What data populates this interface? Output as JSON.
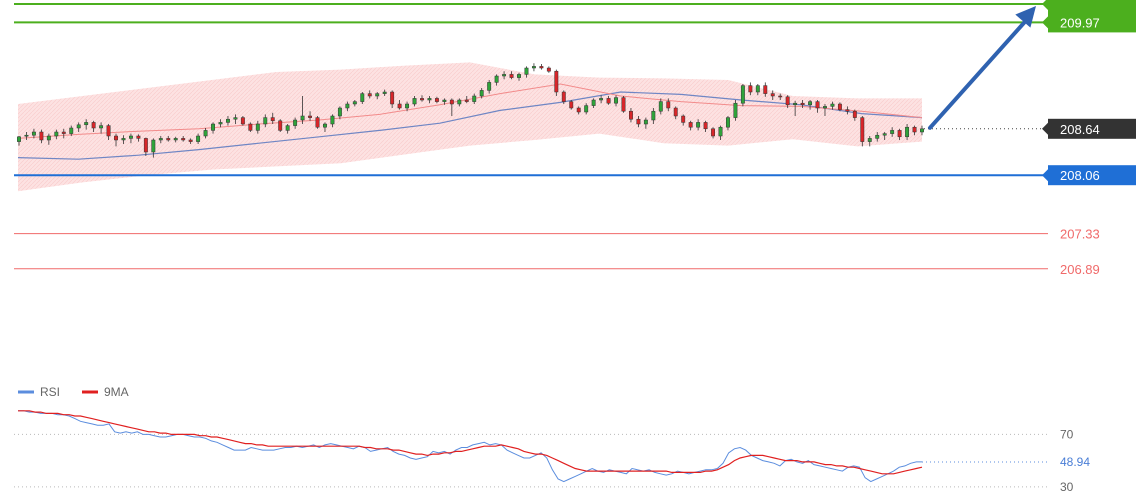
{
  "chart_data": {
    "type": "candlestick",
    "price_axis": {
      "min": 206.6,
      "max": 210.25
    },
    "levels": [
      {
        "id": "resistance-1",
        "value": 210.2,
        "label": "",
        "color": "#4caf1e",
        "style": "solid",
        "badge": true
      },
      {
        "id": "resistance-2",
        "value": 209.97,
        "label": "209.97",
        "color": "#4caf1e",
        "style": "solid",
        "badge": true
      },
      {
        "id": "last-price",
        "value": 208.64,
        "label": "208.64",
        "color": "#333333",
        "style": "dotted",
        "badge": true
      },
      {
        "id": "support-1",
        "value": 208.06,
        "label": "208.06",
        "color": "#1f6fd6",
        "style": "solid",
        "badge": true
      },
      {
        "id": "support-2",
        "value": 207.33,
        "label": "207.33",
        "color": "#f06a6a",
        "style": "solid",
        "badge": false
      },
      {
        "id": "support-3",
        "value": 206.89,
        "label": "206.89",
        "color": "#f06a6a",
        "style": "solid",
        "badge": false
      }
    ],
    "arrow": {
      "from_value": 208.64,
      "to_value": 210.25,
      "color": "#2f62b0"
    },
    "candles": [
      [
        208.48,
        208.55,
        208.43,
        208.54
      ],
      [
        208.55,
        208.6,
        208.5,
        208.56
      ],
      [
        208.56,
        208.64,
        208.52,
        208.6
      ],
      [
        208.6,
        208.63,
        208.46,
        208.5
      ],
      [
        208.5,
        208.58,
        208.44,
        208.55
      ],
      [
        208.55,
        208.63,
        208.51,
        208.6
      ],
      [
        208.6,
        208.64,
        208.52,
        208.58
      ],
      [
        208.58,
        208.68,
        208.55,
        208.65
      ],
      [
        208.65,
        208.72,
        208.6,
        208.69
      ],
      [
        208.69,
        208.76,
        208.63,
        208.72
      ],
      [
        208.72,
        208.74,
        208.6,
        208.65
      ],
      [
        208.65,
        208.72,
        208.58,
        208.68
      ],
      [
        208.68,
        208.7,
        208.5,
        208.55
      ],
      [
        208.55,
        208.58,
        208.42,
        208.5
      ],
      [
        208.5,
        208.56,
        208.45,
        208.52
      ],
      [
        208.52,
        208.58,
        208.46,
        208.55
      ],
      [
        208.55,
        208.57,
        208.48,
        208.52
      ],
      [
        208.52,
        208.53,
        208.3,
        208.35
      ],
      [
        208.35,
        208.52,
        208.28,
        208.5
      ],
      [
        208.5,
        208.55,
        208.46,
        208.52
      ],
      [
        208.52,
        208.55,
        208.48,
        208.5
      ],
      [
        208.5,
        208.54,
        208.47,
        208.52
      ],
      [
        208.52,
        208.55,
        208.48,
        208.5
      ],
      [
        208.5,
        208.52,
        208.45,
        208.48
      ],
      [
        208.48,
        208.58,
        208.45,
        208.55
      ],
      [
        208.55,
        208.65,
        208.52,
        208.62
      ],
      [
        208.62,
        208.72,
        208.58,
        208.7
      ],
      [
        208.7,
        208.76,
        208.66,
        208.72
      ],
      [
        208.72,
        208.8,
        208.68,
        208.76
      ],
      [
        208.76,
        208.82,
        208.7,
        208.78
      ],
      [
        208.78,
        208.8,
        208.68,
        208.7
      ],
      [
        208.7,
        208.72,
        208.6,
        208.62
      ],
      [
        208.62,
        208.74,
        208.58,
        208.7
      ],
      [
        208.7,
        208.82,
        208.66,
        208.78
      ],
      [
        208.78,
        208.84,
        208.7,
        208.74
      ],
      [
        208.74,
        208.76,
        208.6,
        208.62
      ],
      [
        208.62,
        208.7,
        208.58,
        208.68
      ],
      [
        208.68,
        208.78,
        208.64,
        208.75
      ],
      [
        208.75,
        209.05,
        208.7,
        208.8
      ],
      [
        208.8,
        208.86,
        208.74,
        208.78
      ],
      [
        208.78,
        208.8,
        208.64,
        208.66
      ],
      [
        208.66,
        208.72,
        208.6,
        208.7
      ],
      [
        208.7,
        208.82,
        208.66,
        208.8
      ],
      [
        208.8,
        208.92,
        208.76,
        208.9
      ],
      [
        208.9,
        208.98,
        208.86,
        208.95
      ],
      [
        208.95,
        209.0,
        208.92,
        208.98
      ],
      [
        208.98,
        209.1,
        208.95,
        209.08
      ],
      [
        209.08,
        209.12,
        209.02,
        209.05
      ],
      [
        209.05,
        209.1,
        209.01,
        209.08
      ],
      [
        209.08,
        209.13,
        209.05,
        209.1
      ],
      [
        209.1,
        209.12,
        208.9,
        208.95
      ],
      [
        208.95,
        209.0,
        208.88,
        208.9
      ],
      [
        208.9,
        208.98,
        208.86,
        208.95
      ],
      [
        208.95,
        209.05,
        208.92,
        209.02
      ],
      [
        209.02,
        209.06,
        208.98,
        209.0
      ],
      [
        209.0,
        209.05,
        208.96,
        209.02
      ],
      [
        209.02,
        209.04,
        208.96,
        208.98
      ],
      [
        208.98,
        209.02,
        208.94,
        209.0
      ],
      [
        209.0,
        209.02,
        208.8,
        208.95
      ],
      [
        208.95,
        209.02,
        208.92,
        209.0
      ],
      [
        209.0,
        209.05,
        208.96,
        208.98
      ],
      [
        208.98,
        209.08,
        208.95,
        209.05
      ],
      [
        209.05,
        209.15,
        209.02,
        209.12
      ],
      [
        209.12,
        209.25,
        209.08,
        209.22
      ],
      [
        209.22,
        209.32,
        209.18,
        209.3
      ],
      [
        209.3,
        209.36,
        209.26,
        209.32
      ],
      [
        209.32,
        209.36,
        209.26,
        209.28
      ],
      [
        209.28,
        209.34,
        209.24,
        209.32
      ],
      [
        209.32,
        209.42,
        209.28,
        209.4
      ],
      [
        209.4,
        209.46,
        209.36,
        209.42
      ],
      [
        209.42,
        209.45,
        209.38,
        209.4
      ],
      [
        209.4,
        209.42,
        209.34,
        209.36
      ],
      [
        209.36,
        209.38,
        209.05,
        209.1
      ],
      [
        209.1,
        209.12,
        208.95,
        208.98
      ],
      [
        208.98,
        209.0,
        208.88,
        208.9
      ],
      [
        208.9,
        208.92,
        208.82,
        208.85
      ],
      [
        208.85,
        208.96,
        208.82,
        208.93
      ],
      [
        208.93,
        209.02,
        208.9,
        209.0
      ],
      [
        209.0,
        209.06,
        208.96,
        209.02
      ],
      [
        209.02,
        209.05,
        208.94,
        208.96
      ],
      [
        208.96,
        209.06,
        208.92,
        209.03
      ],
      [
        209.03,
        209.05,
        208.84,
        208.86
      ],
      [
        208.86,
        208.9,
        208.72,
        208.76
      ],
      [
        208.76,
        208.8,
        208.66,
        208.7
      ],
      [
        208.7,
        208.78,
        208.64,
        208.75
      ],
      [
        208.75,
        208.9,
        208.7,
        208.86
      ],
      [
        208.86,
        209.02,
        208.82,
        208.98
      ],
      [
        208.98,
        209.02,
        208.86,
        208.9
      ],
      [
        208.9,
        208.92,
        208.76,
        208.8
      ],
      [
        208.8,
        208.82,
        208.68,
        208.72
      ],
      [
        208.72,
        208.74,
        208.62,
        208.66
      ],
      [
        208.66,
        208.76,
        208.62,
        208.72
      ],
      [
        208.72,
        208.74,
        208.6,
        208.64
      ],
      [
        208.64,
        208.66,
        208.52,
        208.55
      ],
      [
        208.55,
        208.68,
        208.5,
        208.66
      ],
      [
        208.66,
        208.8,
        208.62,
        208.78
      ],
      [
        208.78,
        209.0,
        208.74,
        208.96
      ],
      [
        208.96,
        209.2,
        208.92,
        209.18
      ],
      [
        209.18,
        209.22,
        209.06,
        209.1
      ],
      [
        209.1,
        209.2,
        209.06,
        209.18
      ],
      [
        209.18,
        209.22,
        209.04,
        209.08
      ],
      [
        209.08,
        209.12,
        209.0,
        209.05
      ],
      [
        209.05,
        209.08,
        209.0,
        209.04
      ],
      [
        209.04,
        209.06,
        208.9,
        208.94
      ],
      [
        208.94,
        208.99,
        208.8,
        208.96
      ],
      [
        208.96,
        209.0,
        208.9,
        208.94
      ],
      [
        208.94,
        209.0,
        208.88,
        208.98
      ],
      [
        208.98,
        209.0,
        208.84,
        208.9
      ],
      [
        208.9,
        208.95,
        208.8,
        208.92
      ],
      [
        208.92,
        208.98,
        208.88,
        208.95
      ],
      [
        208.95,
        208.97,
        208.86,
        208.88
      ],
      [
        208.88,
        208.92,
        208.82,
        208.86
      ],
      [
        208.86,
        208.88,
        208.74,
        208.78
      ],
      [
        208.78,
        208.8,
        208.42,
        208.48
      ],
      [
        208.48,
        208.55,
        208.42,
        208.52
      ],
      [
        208.52,
        208.6,
        208.48,
        208.56
      ],
      [
        208.56,
        208.6,
        208.5,
        208.58
      ],
      [
        208.58,
        208.66,
        208.54,
        208.62
      ],
      [
        208.62,
        208.64,
        208.5,
        208.54
      ],
      [
        208.54,
        208.7,
        208.5,
        208.66
      ],
      [
        208.66,
        208.68,
        208.56,
        208.6
      ],
      [
        208.6,
        208.68,
        208.56,
        208.64
      ]
    ],
    "bollinger": {
      "upper": [
        208.95,
        209.05,
        209.15,
        209.25,
        209.35,
        209.38,
        209.43,
        209.47,
        209.32,
        209.28,
        209.27,
        209.25,
        209.05,
        209.02,
        209.02
      ],
      "lower": [
        207.86,
        207.97,
        208.06,
        208.13,
        208.17,
        208.21,
        208.32,
        208.43,
        208.5,
        208.58,
        208.46,
        208.43,
        208.51,
        208.42,
        208.48
      ]
    },
    "ma_fast": [
      208.52,
      208.57,
      208.61,
      208.64,
      208.7,
      208.75,
      208.82,
      208.94,
      209.08,
      209.2,
      209.05,
      208.98,
      208.93,
      208.92,
      208.86,
      208.78
    ],
    "ma_slow": [
      208.28,
      208.26,
      208.31,
      208.38,
      208.46,
      208.54,
      208.62,
      208.71,
      208.87,
      208.97,
      209.1,
      209.07,
      209.0,
      208.94,
      208.83,
      208.78
    ],
    "rsi_panel": {
      "legend": [
        {
          "name": "RSI",
          "color": "#5b8dde"
        },
        {
          "name": "9MA",
          "color": "#e02020"
        }
      ],
      "axis": {
        "min": 20,
        "max": 100
      },
      "levels": [
        {
          "value": 70,
          "label": "70"
        },
        {
          "value": 30,
          "label": "30"
        }
      ],
      "current": {
        "value": 48.94,
        "label": "48.94"
      },
      "rsi": [
        88,
        88,
        87,
        87,
        86,
        86,
        86,
        85,
        85,
        84,
        82,
        80,
        79,
        78,
        77,
        77,
        78,
        72,
        71,
        72,
        71,
        72,
        70,
        70,
        69,
        68,
        68,
        69,
        70,
        70,
        69,
        68,
        68,
        67,
        65,
        64,
        62,
        60,
        58,
        58,
        58,
        60,
        59,
        58,
        58,
        58,
        59,
        60,
        60,
        61,
        60,
        61,
        62,
        60,
        62,
        63,
        62,
        61,
        60,
        59,
        61,
        60,
        57,
        58,
        59,
        60,
        57,
        55,
        54,
        52,
        51,
        52,
        53,
        57,
        56,
        57,
        55,
        58,
        60,
        60,
        62,
        63,
        64,
        62,
        63,
        62,
        58,
        56,
        54,
        52,
        52,
        54,
        56,
        52,
        43,
        36,
        34,
        36,
        38,
        40,
        42,
        44,
        42,
        41,
        43,
        42,
        41,
        40,
        44,
        43,
        42,
        43,
        41,
        40,
        39,
        40,
        42,
        41,
        40,
        41,
        42,
        43,
        43,
        44,
        48,
        56,
        59,
        60,
        58,
        54,
        52,
        50,
        49,
        48,
        46,
        50,
        51,
        49,
        48,
        50,
        47,
        46,
        45,
        44,
        43,
        42,
        45,
        46,
        45,
        37,
        34,
        36,
        38,
        40,
        42,
        45,
        46,
        48,
        49,
        49
      ],
      "ma": [
        88,
        88,
        88,
        87,
        87,
        86,
        86,
        86,
        85,
        85,
        84,
        84,
        83,
        82,
        81,
        80,
        79,
        78,
        77,
        76,
        75,
        74,
        73,
        72,
        72,
        71,
        71,
        70,
        70,
        70,
        70,
        70,
        69,
        69,
        68,
        68,
        67,
        66,
        65,
        64,
        63,
        63,
        62,
        62,
        61,
        61,
        61,
        61,
        61,
        61,
        61,
        61,
        61,
        61,
        61,
        61,
        61,
        61,
        61,
        61,
        61,
        60,
        60,
        59,
        59,
        59,
        58,
        58,
        57,
        56,
        55,
        55,
        54,
        55,
        55,
        56,
        56,
        57,
        57,
        58,
        59,
        60,
        61,
        61,
        61,
        62,
        61,
        60,
        59,
        57,
        56,
        55,
        55,
        54,
        52,
        50,
        48,
        46,
        44,
        43,
        42,
        42,
        42,
        42,
        42,
        42,
        42,
        42,
        42,
        42,
        42,
        42,
        42,
        42,
        42,
        41,
        41,
        41,
        41,
        41,
        41,
        42,
        42,
        43,
        45,
        47,
        50,
        52,
        53,
        54,
        54,
        54,
        53,
        52,
        51,
        50,
        50,
        50,
        49,
        49,
        49,
        48,
        47,
        47,
        46,
        46,
        45,
        45,
        44,
        43,
        42,
        41,
        40,
        40,
        40,
        41,
        42,
        43,
        44,
        45
      ]
    }
  }
}
